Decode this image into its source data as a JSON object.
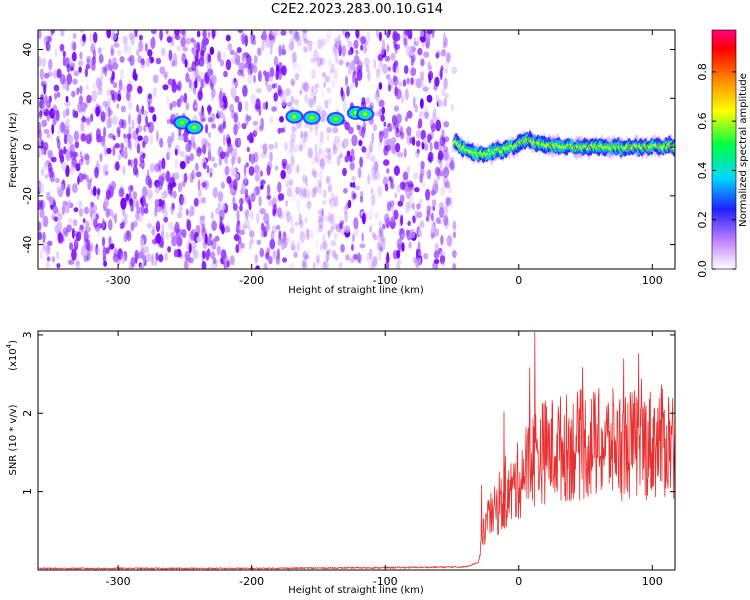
{
  "title": "C2E2.2023.283.00.10.G14",
  "colors": {
    "snr_line": "#e83030",
    "signal_core": "#ff1e1e"
  },
  "chart_data": [
    {
      "type": "heatmap",
      "title": "C2E2.2023.283.00.10.G14",
      "xlabel": "Height of straight line (km)",
      "ylabel": "Frequency (Hz)",
      "xlim": [
        -360,
        117
      ],
      "ylim": [
        -50,
        48
      ],
      "x_ticks": [
        -300,
        -200,
        -100,
        0,
        100
      ],
      "y_ticks": [
        -40,
        -20,
        0,
        20,
        40
      ],
      "colorbar": {
        "label": "Normalized spectral amplitude",
        "range": [
          0,
          0.97
        ],
        "ticks": [
          "0.0",
          "0.2",
          "0.4",
          "0.6",
          "0.8"
        ]
      },
      "noise_region_x": [
        -360,
        -48
      ],
      "blobs": [
        {
          "x": -252,
          "y": 10
        },
        {
          "x": -243,
          "y": 8
        },
        {
          "x": -168,
          "y": 12.5
        },
        {
          "x": -155,
          "y": 12
        },
        {
          "x": -137,
          "y": 11.5
        },
        {
          "x": -122,
          "y": 14
        },
        {
          "x": -115,
          "y": 13.5
        }
      ],
      "signal_track": [
        [
          -48,
          2
        ],
        [
          -40,
          -1
        ],
        [
          -30,
          -3
        ],
        [
          -20,
          -2
        ],
        [
          -10,
          -1
        ],
        [
          0,
          1
        ],
        [
          5,
          3
        ],
        [
          10,
          2
        ],
        [
          20,
          1
        ],
        [
          40,
          0
        ],
        [
          60,
          0
        ],
        [
          80,
          0
        ],
        [
          100,
          0
        ],
        [
          117,
          0.5
        ]
      ],
      "grid": false
    },
    {
      "type": "line",
      "xlabel": "Height of straight line (km)",
      "ylabel": "SNR (10 * v/v)",
      "multiplier": "(x10",
      "multiplier_exp": "4",
      "multiplier_close": ")",
      "xlim": [
        -360,
        117
      ],
      "ylim": [
        0,
        3.05
      ],
      "x_ticks": [
        -300,
        -200,
        -100,
        0,
        100
      ],
      "y_ticks": [
        1,
        2,
        3
      ],
      "series_envelope": [
        [
          -360,
          0.02
        ],
        [
          -200,
          0.02
        ],
        [
          -100,
          0.03
        ],
        [
          -40,
          0.04
        ],
        [
          -30,
          0.1
        ],
        [
          -25,
          0.6
        ],
        [
          -15,
          0.8
        ],
        [
          -5,
          1.0
        ],
        [
          5,
          1.3
        ],
        [
          15,
          1.5
        ],
        [
          30,
          1.55
        ],
        [
          50,
          1.6
        ],
        [
          70,
          1.6
        ],
        [
          90,
          1.6
        ],
        [
          117,
          1.65
        ]
      ],
      "peak": {
        "x": 12,
        "y": 3.05
      },
      "grid": false
    }
  ]
}
